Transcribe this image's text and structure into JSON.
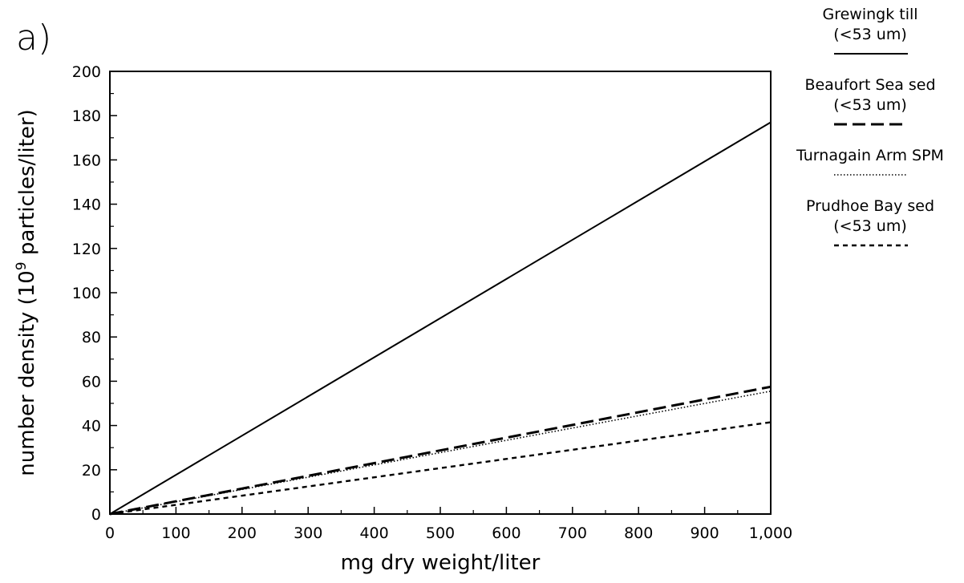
{
  "panel_label": "a)",
  "chart_data": {
    "type": "line",
    "xlabel": "mg dry weight/liter",
    "ylabel": {
      "prefix": "number density (10",
      "superscript": "9",
      "suffix": " particles/liter)"
    },
    "xlim": [
      0,
      1000
    ],
    "ylim": [
      0,
      200
    ],
    "x_ticks": [
      0,
      100,
      200,
      300,
      400,
      500,
      600,
      700,
      800,
      900,
      1000
    ],
    "x_tick_labels": [
      "0",
      "100",
      "200",
      "300",
      "400",
      "500",
      "600",
      "700",
      "800",
      "900",
      "1,000"
    ],
    "y_ticks": [
      0,
      20,
      40,
      60,
      80,
      100,
      120,
      140,
      160,
      180,
      200
    ],
    "y_tick_labels": [
      "0",
      "20",
      "40",
      "60",
      "80",
      "100",
      "120",
      "140",
      "160",
      "180",
      "200"
    ],
    "grid": false,
    "legend_position": "right",
    "series": [
      {
        "name": "Grewingk till\n(<53 um)",
        "style": "solid",
        "x": [
          0,
          1000
        ],
        "y": [
          0,
          177
        ]
      },
      {
        "name": "Beaufort Sea sed\n(<53 um)",
        "style": "dashed",
        "x": [
          0,
          1000
        ],
        "y": [
          0,
          57.5
        ]
      },
      {
        "name": "Turnagain Arm SPM",
        "style": "dotted",
        "x": [
          0,
          1000
        ],
        "y": [
          0,
          55.5
        ]
      },
      {
        "name": "Prudhoe Bay sed\n(<53 um)",
        "style": "short-dashed",
        "x": [
          0,
          1000
        ],
        "y": [
          0,
          41.5
        ]
      }
    ]
  }
}
